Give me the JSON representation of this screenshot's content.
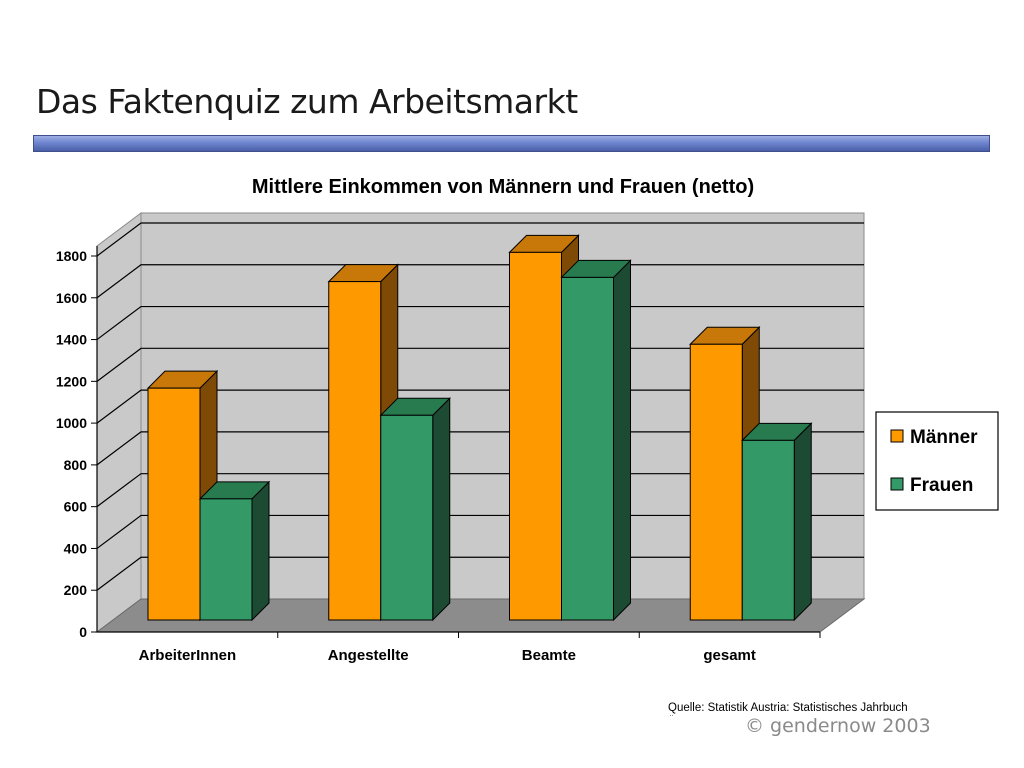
{
  "slide": {
    "title": "Das Faktenquiz zum Arbeitsmarkt",
    "source": "Quelle: Statistik Austria: Statistisches Jahrbuch",
    "source_mark": "¨",
    "copyright": "©  gendernow 2003"
  },
  "colors": {
    "maenner_front": "#ff9900",
    "maenner_side": "#7f4a05",
    "maenner_top": "#c87808",
    "frauen_front": "#339966",
    "frauen_side": "#1d4a33",
    "frauen_top": "#287a4f",
    "wall": "#c9c9c9",
    "floor": "#8c8c8c",
    "title_bar": "#6e85cf"
  },
  "chart_data": {
    "type": "bar",
    "title": "Mittlere Einkommen von Männern und Frauen (netto)",
    "categories": [
      "ArbeiterInnen",
      "Angestellte",
      "Beamte",
      "gesamt"
    ],
    "series": [
      {
        "name": "Männer",
        "values": [
          1110,
          1620,
          1760,
          1320
        ]
      },
      {
        "name": "Frauen",
        "values": [
          580,
          980,
          1640,
          860
        ]
      }
    ],
    "ylim": [
      0,
      1800
    ],
    "yticks": [
      0,
      200,
      400,
      600,
      800,
      1000,
      1200,
      1400,
      1600,
      1800
    ],
    "grid": true,
    "legend": "right",
    "style": "3d"
  }
}
